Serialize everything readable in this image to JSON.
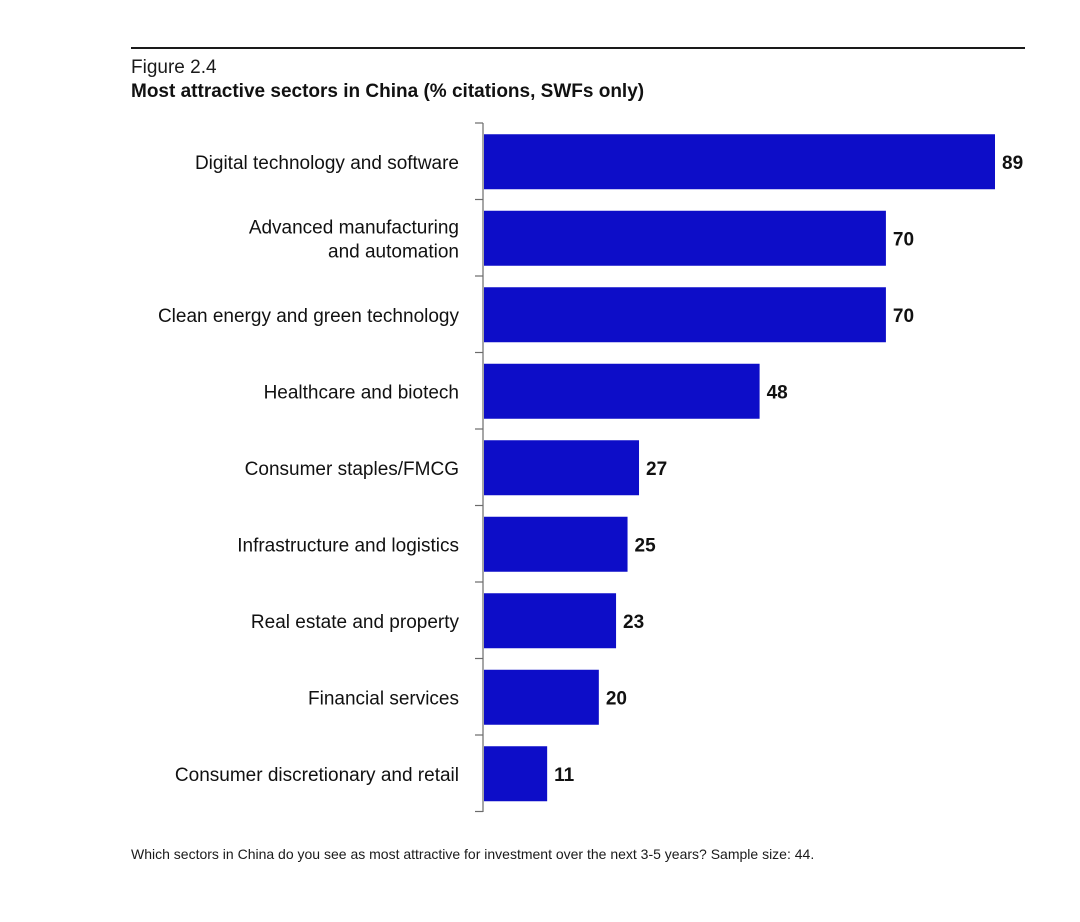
{
  "figure": {
    "label": "Figure 2.4",
    "title": "Most attractive sectors in China (% citations, SWFs only)",
    "footnote": "Which sectors in China do you see as most attractive for investment over the next 3-5 years? Sample size: 44."
  },
  "colors": {
    "bar": "#0d0dc8",
    "axis": "#6b6b6b",
    "text": "#111111"
  },
  "chart_data": {
    "type": "bar",
    "orientation": "horizontal",
    "categories": [
      "Digital technology and software",
      "Advanced manufacturing and automation",
      "Clean energy and green technology",
      "Healthcare and biotech",
      "Consumer staples/FMCG",
      "Infrastructure and logistics",
      "Real estate and property",
      "Financial services",
      "Consumer discretionary and retail"
    ],
    "category_lines": [
      [
        "Digital technology and software"
      ],
      [
        "Advanced manufacturing",
        "and automation"
      ],
      [
        "Clean energy and green technology"
      ],
      [
        "Healthcare and biotech"
      ],
      [
        "Consumer staples/FMCG"
      ],
      [
        "Infrastructure and logistics"
      ],
      [
        "Real estate and property"
      ],
      [
        "Financial services"
      ],
      [
        "Consumer discretionary and retail"
      ]
    ],
    "values": [
      89,
      70,
      70,
      48,
      27,
      25,
      23,
      20,
      11
    ],
    "data_labels": [
      "89",
      "70",
      "70",
      "48",
      "27",
      "25",
      "23",
      "20",
      "11"
    ],
    "title": "Most attractive sectors in China (% citations, SWFs only)",
    "xlabel": "",
    "ylabel": "",
    "xlim": [
      0,
      89
    ],
    "grid": false,
    "legend": "none"
  }
}
